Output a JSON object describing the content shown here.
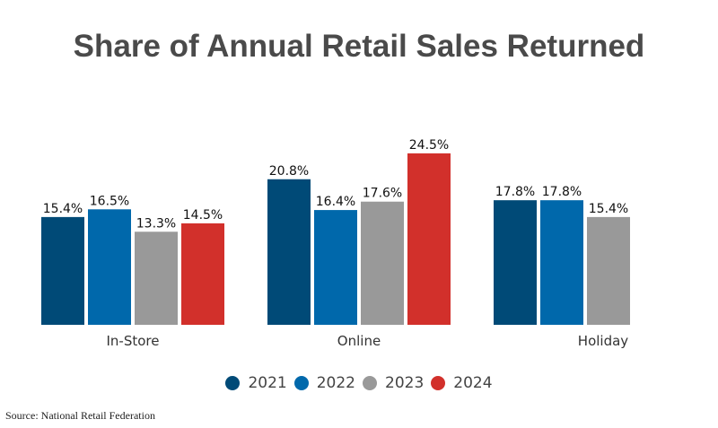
{
  "chart_data": {
    "type": "bar",
    "title": "Share of Annual Retail Sales Returned",
    "xlabel": "",
    "ylabel": "",
    "ylim": [
      0,
      26
    ],
    "grid": false,
    "legend_position": "bottom-center",
    "categories": [
      "In-Store",
      "Online",
      "Holiday"
    ],
    "series": [
      {
        "name": "2021",
        "color": "#004a77",
        "values": [
          15.4,
          20.8,
          17.8
        ],
        "labels": [
          "15.4%",
          "20.8%",
          "17.8%"
        ]
      },
      {
        "name": "2022",
        "color": "#0068ab",
        "values": [
          16.5,
          16.4,
          17.8
        ],
        "labels": [
          "16.5%",
          "16.4%",
          "17.8%"
        ]
      },
      {
        "name": "2023",
        "color": "#999999",
        "values": [
          13.3,
          17.6,
          15.4
        ],
        "labels": [
          "13.3%",
          "17.6%",
          "15.4%"
        ]
      },
      {
        "name": "2024",
        "color": "#d2302b",
        "values": [
          14.5,
          24.5,
          null
        ],
        "labels": [
          "14.5%",
          "24.5%",
          null
        ]
      }
    ],
    "source": "Source: National Retail Federation"
  }
}
